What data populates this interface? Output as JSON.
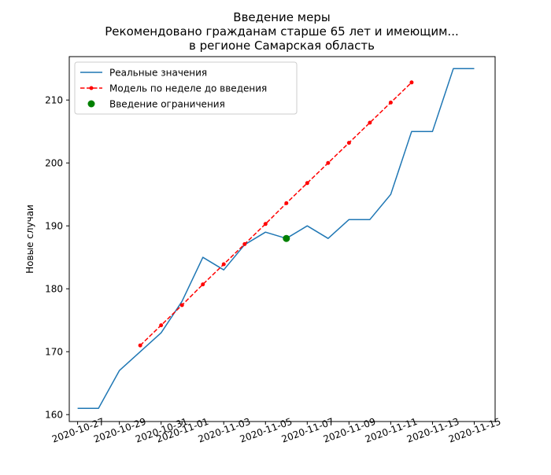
{
  "chart_data": {
    "type": "line",
    "title": {
      "line1": "Введение меры",
      "line2": "Рекомендовано гражданам старше 65 лет и имеющим...",
      "line3": "в регионе Самарская область"
    },
    "xlabel": "",
    "ylabel": "Новые случаи",
    "x_ticks": [
      "2020-10-27",
      "2020-10-29",
      "2020-10-31",
      "2020-11-01",
      "2020-11-03",
      "2020-11-05",
      "2020-11-07",
      "2020-11-09",
      "2020-11-11",
      "2020-11-13",
      "2020-11-15"
    ],
    "y_ticks": [
      160,
      170,
      180,
      190,
      200,
      210
    ],
    "xlim": [
      "2020-10-26.6",
      "2020-11-16.0"
    ],
    "ylim": [
      158.9,
      216.9
    ],
    "grid": false,
    "legend_position": "upper-left",
    "series": [
      {
        "name": "Реальные значения",
        "color": "#1f77b4",
        "style": "solid",
        "points": [
          {
            "x": "2020-10-27",
            "y": 161
          },
          {
            "x": "2020-10-28",
            "y": 161
          },
          {
            "x": "2020-10-29",
            "y": 167
          },
          {
            "x": "2020-10-30",
            "y": 170
          },
          {
            "x": "2020-10-31",
            "y": 173
          },
          {
            "x": "2020-11-01",
            "y": 178
          },
          {
            "x": "2020-11-02",
            "y": 185
          },
          {
            "x": "2020-11-03",
            "y": 183
          },
          {
            "x": "2020-11-04",
            "y": 187
          },
          {
            "x": "2020-11-05",
            "y": 189
          },
          {
            "x": "2020-11-06",
            "y": 188
          },
          {
            "x": "2020-11-07",
            "y": 190
          },
          {
            "x": "2020-11-08",
            "y": 188
          },
          {
            "x": "2020-11-09",
            "y": 191
          },
          {
            "x": "2020-11-10",
            "y": 191
          },
          {
            "x": "2020-11-11",
            "y": 195
          },
          {
            "x": "2020-11-12",
            "y": 205
          },
          {
            "x": "2020-11-13",
            "y": 205
          },
          {
            "x": "2020-11-14",
            "y": 215
          },
          {
            "x": "2020-11-15",
            "y": 215
          }
        ]
      },
      {
        "name": "Модель по неделе до введения",
        "color": "#ff0000",
        "style": "dashed",
        "marker": "dot",
        "points": [
          {
            "x": "2020-10-30",
            "y": 171.0
          },
          {
            "x": "2020-10-31",
            "y": 174.2
          },
          {
            "x": "2020-11-01",
            "y": 177.4
          },
          {
            "x": "2020-11-02",
            "y": 180.7
          },
          {
            "x": "2020-11-03",
            "y": 183.9
          },
          {
            "x": "2020-11-04",
            "y": 187.1
          },
          {
            "x": "2020-11-05",
            "y": 190.3
          },
          {
            "x": "2020-11-06",
            "y": 193.6
          },
          {
            "x": "2020-11-07",
            "y": 196.8
          },
          {
            "x": "2020-11-08",
            "y": 200.0
          },
          {
            "x": "2020-11-09",
            "y": 203.2
          },
          {
            "x": "2020-11-10",
            "y": 206.4
          },
          {
            "x": "2020-11-11",
            "y": 209.6
          },
          {
            "x": "2020-11-12",
            "y": 212.8
          }
        ]
      },
      {
        "name": "Введение ограничения",
        "color": "#008000",
        "style": "marker",
        "marker": "circle",
        "points": [
          {
            "x": "2020-11-06",
            "y": 188
          }
        ]
      }
    ]
  }
}
